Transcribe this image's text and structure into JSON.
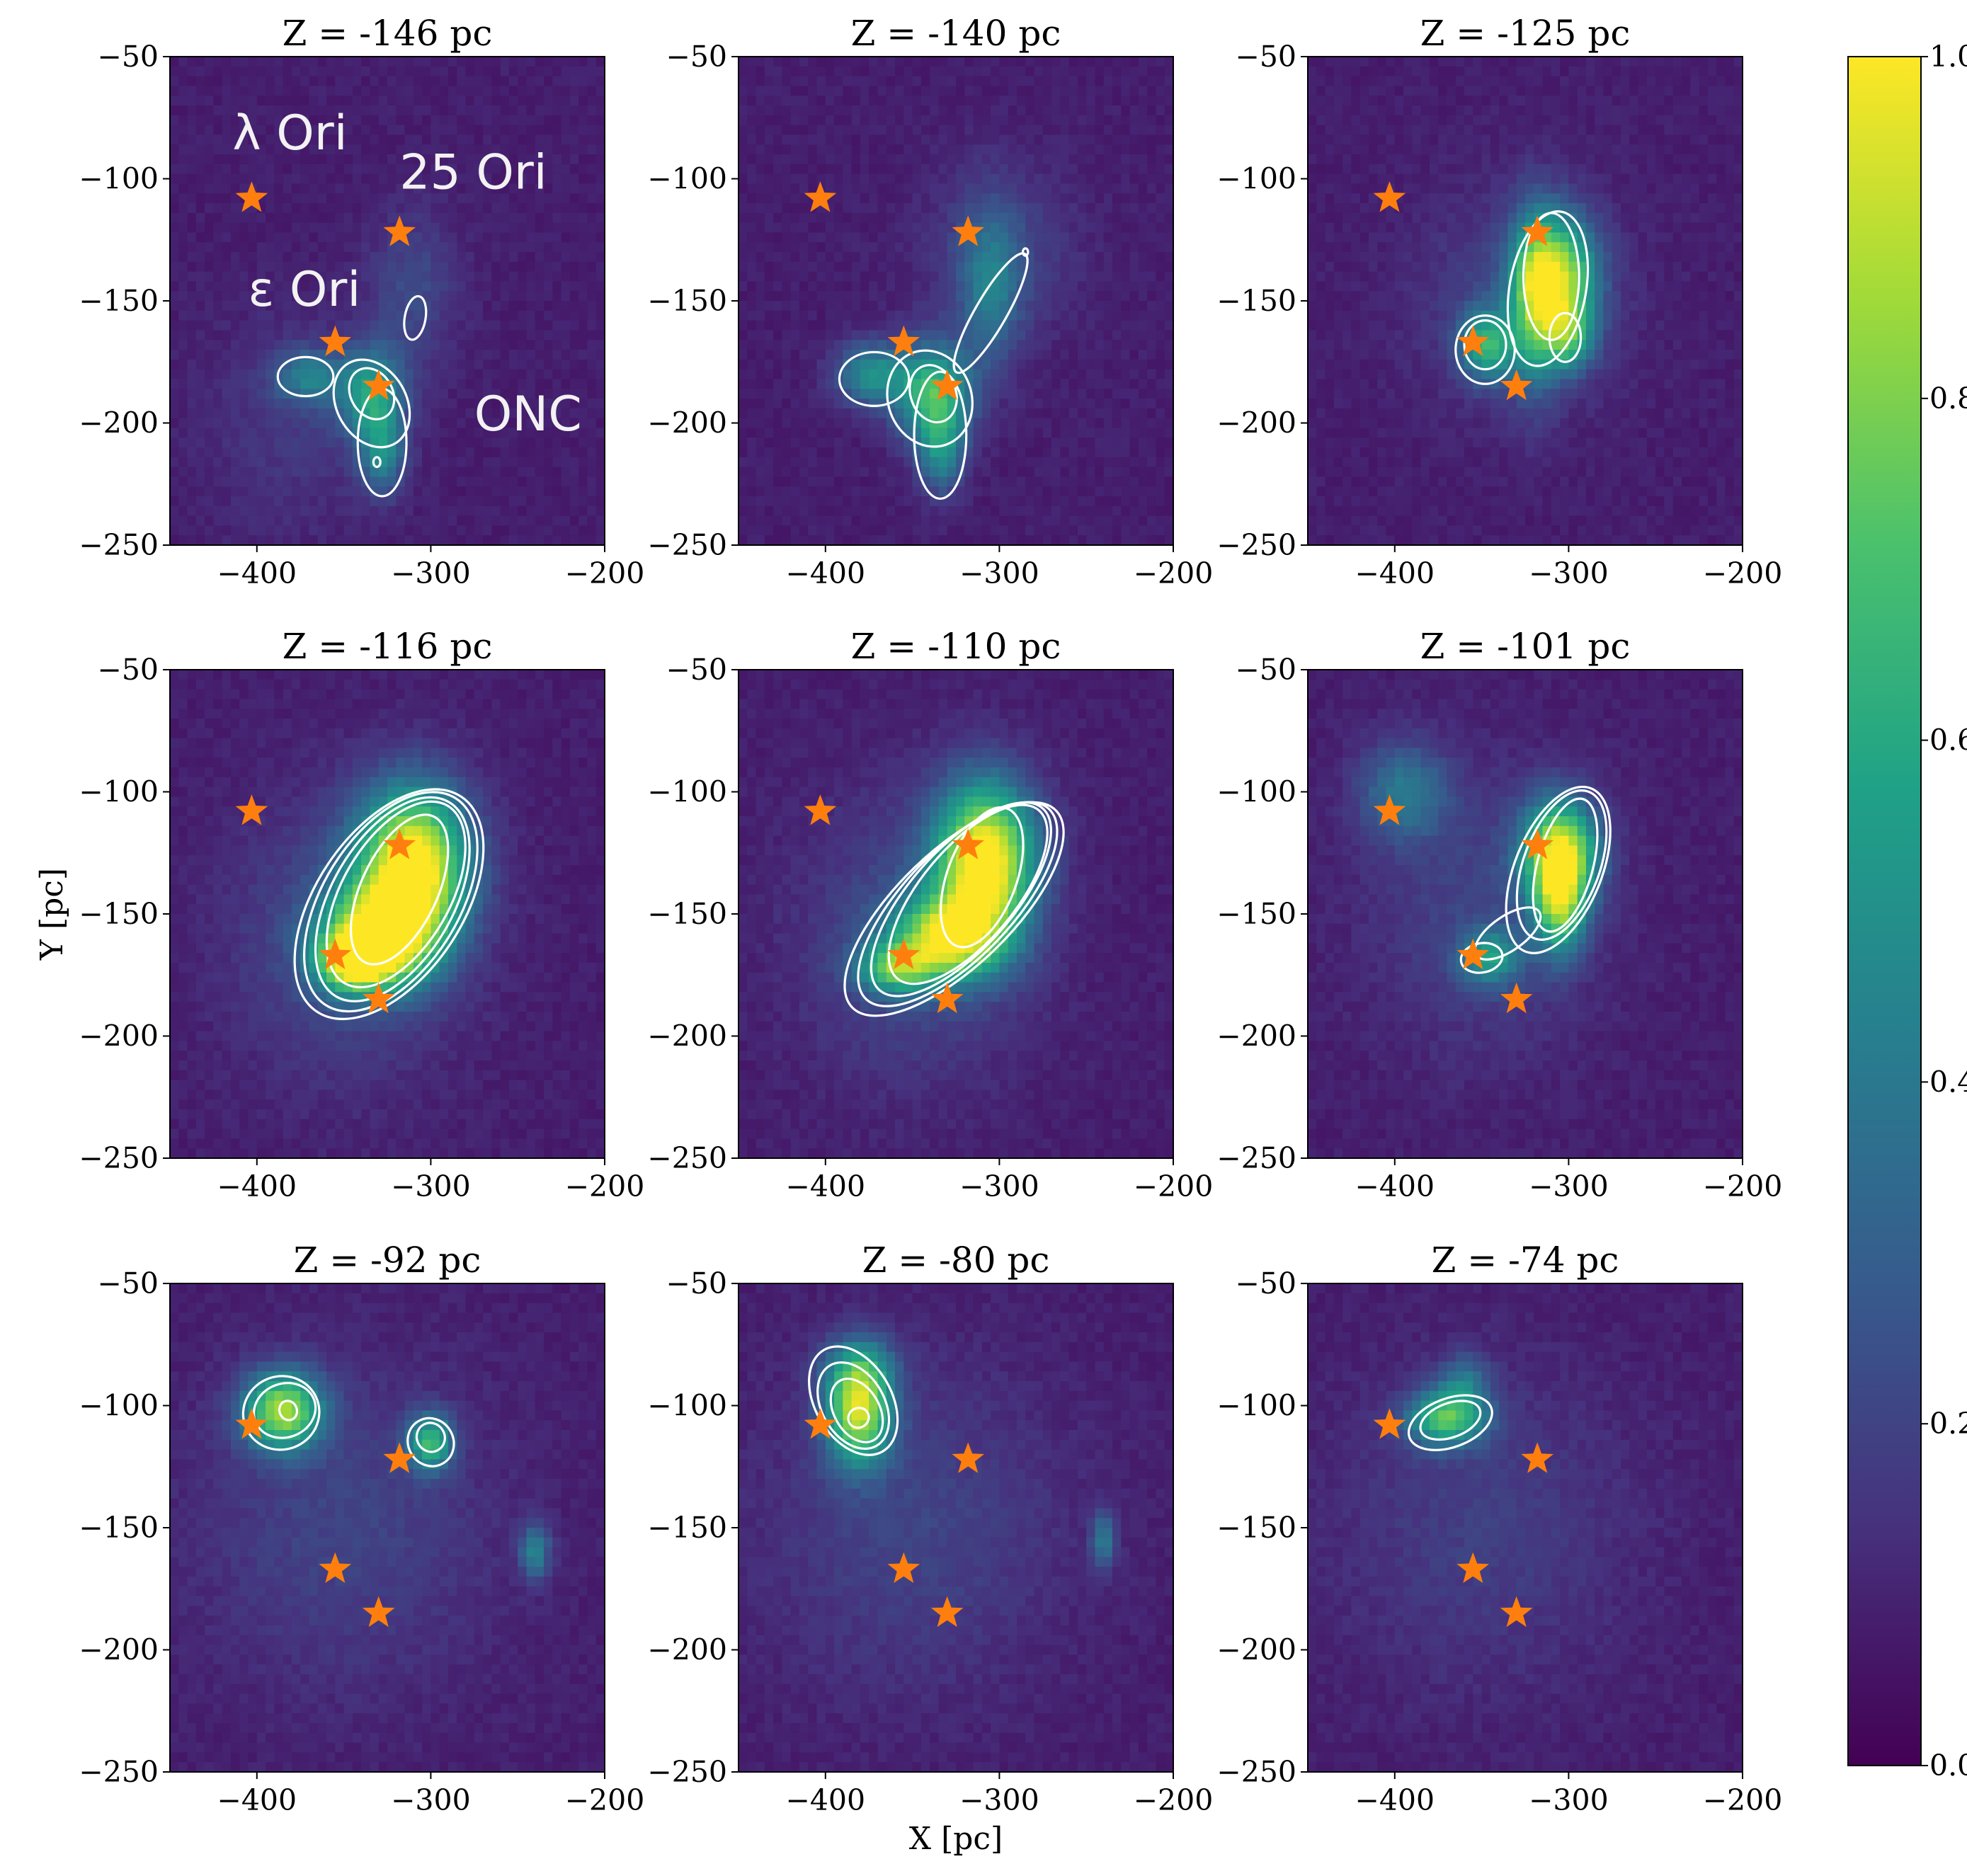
{
  "chart_data": {
    "type": "heatmap",
    "description_free": true,
    "xlabel": "X [pc]",
    "ylabel": "Y [pc]",
    "xlim": [
      -450,
      -200
    ],
    "ylim": [
      -250,
      -50
    ],
    "xticks": [
      -400,
      -300,
      -200
    ],
    "xtick_labels": [
      "−400",
      "−300",
      "−200"
    ],
    "yticks": [
      -50,
      -100,
      -150,
      -200,
      -250
    ],
    "ytick_labels": [
      "−50",
      "−100",
      "−150",
      "−200",
      "−250"
    ],
    "colorbar": {
      "range": [
        0.0,
        1.0
      ],
      "ticks": [
        0.0,
        0.2,
        0.4,
        0.6,
        0.8,
        1.0
      ],
      "tick_labels": [
        "0.0",
        "0.2",
        "0.4",
        "0.6",
        "0.8",
        "1.0"
      ],
      "colormap_stops": [
        "#440154",
        "#46327e",
        "#365c8d",
        "#277f8e",
        "#1fa187",
        "#4ac16d",
        "#a0da39",
        "#fde725"
      ]
    },
    "star_color": "#ff7f0e",
    "stars": [
      {
        "name": "λ Ori",
        "x": -403,
        "y": -108
      },
      {
        "name": "25 Ori",
        "x": -318,
        "y": -122
      },
      {
        "name": "ε Ori",
        "x": -355,
        "y": -167
      },
      {
        "name": "ONC",
        "x": -330,
        "y": -185
      }
    ],
    "panels": [
      {
        "title": "Z = -146 pc",
        "z": -146,
        "blobs": [
          {
            "x": -334,
            "y": -188,
            "sx": 13,
            "sy": 13,
            "a": 0.45
          },
          {
            "x": -328,
            "y": -212,
            "sx": 9,
            "sy": 12,
            "a": 0.35
          },
          {
            "x": -370,
            "y": -181,
            "sx": 14,
            "sy": 8,
            "a": 0.3
          },
          {
            "x": -310,
            "y": -145,
            "sx": 18,
            "sy": 22,
            "a": 0.14
          },
          {
            "x": -380,
            "y": -200,
            "sx": 35,
            "sy": 30,
            "a": 0.08
          }
        ],
        "contours": [
          {
            "x": -334,
            "y": -188,
            "rx": 12,
            "ry": 11,
            "rot": -30
          },
          {
            "x": -334,
            "y": -192,
            "rx": 20,
            "ry": 19,
            "rot": -30
          },
          {
            "x": -328,
            "y": -208,
            "rx": 14,
            "ry": 22,
            "rot": 0
          },
          {
            "x": -372,
            "y": -181,
            "rx": 16,
            "ry": 8,
            "rot": 0
          },
          {
            "x": -309,
            "y": -157,
            "rx": 6,
            "ry": 9,
            "rot": 10
          },
          {
            "x": -331,
            "y": -216,
            "rx": 2,
            "ry": 2,
            "rot": 0
          }
        ],
        "labels": [
          {
            "text": "λ Ori",
            "x": -414,
            "y": -88
          },
          {
            "text": "25 Ori",
            "x": -318,
            "y": -104
          },
          {
            "text": "ε Ori",
            "x": -405,
            "y": -152
          },
          {
            "text": "ONC",
            "x": -275,
            "y": -203
          }
        ]
      },
      {
        "title": "Z = -140 pc",
        "z": -140,
        "blobs": [
          {
            "x": -338,
            "y": -188,
            "sx": 15,
            "sy": 14,
            "a": 0.6
          },
          {
            "x": -333,
            "y": -212,
            "sx": 9,
            "sy": 12,
            "a": 0.35
          },
          {
            "x": -374,
            "y": -180,
            "sx": 14,
            "sy": 9,
            "a": 0.4
          },
          {
            "x": -305,
            "y": -145,
            "sx": 12,
            "sy": 22,
            "a": 0.28
          },
          {
            "x": -300,
            "y": -130,
            "sx": 30,
            "sy": 25,
            "a": 0.12
          }
        ],
        "contours": [
          {
            "x": -338,
            "y": -188,
            "rx": 13,
            "ry": 12,
            "rot": -20
          },
          {
            "x": -340,
            "y": -190,
            "rx": 24,
            "ry": 20,
            "rot": -20
          },
          {
            "x": -334,
            "y": -205,
            "rx": 15,
            "ry": 26,
            "rot": 0
          },
          {
            "x": -372,
            "y": -182,
            "rx": 20,
            "ry": 11,
            "rot": 0
          },
          {
            "x": -305,
            "y": -155,
            "rx": 9,
            "ry": 28,
            "rot": 30
          },
          {
            "x": -285,
            "y": -130,
            "rx": 1.5,
            "ry": 1.5,
            "rot": 0
          }
        ],
        "labels": []
      },
      {
        "title": "Z = -125 pc",
        "z": -125,
        "blobs": [
          {
            "x": -305,
            "y": -140,
            "sx": 15,
            "sy": 17,
            "a": 0.7
          },
          {
            "x": -320,
            "y": -150,
            "sx": 10,
            "sy": 25,
            "a": 0.45
          },
          {
            "x": -347,
            "y": -168,
            "sx": 11,
            "sy": 10,
            "a": 0.5
          },
          {
            "x": -300,
            "y": -165,
            "sx": 10,
            "sy": 10,
            "a": 0.4
          },
          {
            "x": -330,
            "y": -150,
            "sx": 40,
            "sy": 30,
            "a": 0.12
          }
        ],
        "contours": [
          {
            "x": -310,
            "y": -140,
            "rx": 16,
            "ry": 26,
            "rot": 0
          },
          {
            "x": -312,
            "y": -145,
            "rx": 22,
            "ry": 32,
            "rot": 10
          },
          {
            "x": -348,
            "y": -168,
            "rx": 12,
            "ry": 10,
            "rot": 0
          },
          {
            "x": -348,
            "y": -170,
            "rx": 17,
            "ry": 14,
            "rot": 0
          },
          {
            "x": -302,
            "y": -165,
            "rx": 9,
            "ry": 10,
            "rot": 0
          }
        ],
        "labels": []
      },
      {
        "title": "Z = -116 pc",
        "z": -116,
        "blobs": [
          {
            "x": -310,
            "y": -130,
            "sx": 22,
            "sy": 22,
            "a": 0.95
          },
          {
            "x": -330,
            "y": -160,
            "sx": 22,
            "sy": 14,
            "a": 0.8
          },
          {
            "x": -345,
            "y": -170,
            "sx": 14,
            "sy": 8,
            "a": 0.6
          },
          {
            "x": -350,
            "y": -160,
            "sx": 45,
            "sy": 40,
            "a": 0.15
          }
        ],
        "contours": [
          {
            "x": -318,
            "y": -140,
            "rx": 22,
            "ry": 33,
            "rot": 25
          },
          {
            "x": -320,
            "y": -142,
            "rx": 31,
            "ry": 42,
            "rot": 30
          },
          {
            "x": -322,
            "y": -144,
            "rx": 35,
            "ry": 46,
            "rot": 30
          },
          {
            "x": -323,
            "y": -145,
            "rx": 39,
            "ry": 50,
            "rot": 32
          },
          {
            "x": -324,
            "y": -146,
            "rx": 42,
            "ry": 53,
            "rot": 34
          }
        ],
        "labels": []
      },
      {
        "title": "Z = -110 pc",
        "z": -110,
        "blobs": [
          {
            "x": -308,
            "y": -128,
            "sx": 20,
            "sy": 22,
            "a": 0.95
          },
          {
            "x": -330,
            "y": -160,
            "sx": 22,
            "sy": 12,
            "a": 0.7
          },
          {
            "x": -360,
            "y": -172,
            "sx": 15,
            "sy": 7,
            "a": 0.5
          },
          {
            "x": -350,
            "y": -160,
            "sx": 45,
            "sy": 40,
            "a": 0.15
          }
        ],
        "contours": [
          {
            "x": -310,
            "y": -135,
            "rx": 20,
            "ry": 30,
            "rot": 20
          },
          {
            "x": -318,
            "y": -142,
            "rx": 27,
            "ry": 45,
            "rot": 40
          },
          {
            "x": -322,
            "y": -144,
            "rx": 29,
            "ry": 50,
            "rot": 42
          },
          {
            "x": -324,
            "y": -146,
            "rx": 31,
            "ry": 54,
            "rot": 44
          },
          {
            "x": -326,
            "y": -148,
            "rx": 33,
            "ry": 58,
            "rot": 46
          }
        ],
        "labels": []
      },
      {
        "title": "Z = -101 pc",
        "z": -101,
        "blobs": [
          {
            "x": -305,
            "y": -125,
            "sx": 15,
            "sy": 15,
            "a": 0.85
          },
          {
            "x": -305,
            "y": -148,
            "sx": 10,
            "sy": 14,
            "a": 0.55
          },
          {
            "x": -345,
            "y": -168,
            "sx": 12,
            "sy": 8,
            "a": 0.4
          },
          {
            "x": -395,
            "y": -100,
            "sx": 18,
            "sy": 14,
            "a": 0.3
          },
          {
            "x": -350,
            "y": -150,
            "sx": 45,
            "sy": 40,
            "a": 0.12
          }
        ],
        "contours": [
          {
            "x": -302,
            "y": -130,
            "rx": 16,
            "ry": 28,
            "rot": 15
          },
          {
            "x": -304,
            "y": -130,
            "rx": 22,
            "ry": 32,
            "rot": 20
          },
          {
            "x": -306,
            "y": -132,
            "rx": 25,
            "ry": 36,
            "rot": 22
          },
          {
            "x": -350,
            "y": -168,
            "rx": 12,
            "ry": 6,
            "rot": -10
          },
          {
            "x": -335,
            "y": -158,
            "rx": 22,
            "ry": 7,
            "rot": -35
          }
        ],
        "labels": []
      },
      {
        "title": "Z = -92 pc",
        "z": -92,
        "blobs": [
          {
            "x": -385,
            "y": -102,
            "sx": 16,
            "sy": 11,
            "a": 0.75
          },
          {
            "x": -300,
            "y": -115,
            "sx": 9,
            "sy": 8,
            "a": 0.55
          },
          {
            "x": -240,
            "y": -160,
            "sx": 6,
            "sy": 8,
            "a": 0.35
          },
          {
            "x": -350,
            "y": -150,
            "sx": 60,
            "sy": 45,
            "a": 0.12
          }
        ],
        "contours": [
          {
            "x": -382,
            "y": -102,
            "rx": 5,
            "ry": 4,
            "rot": -20
          },
          {
            "x": -384,
            "y": -102,
            "rx": 18,
            "ry": 11,
            "rot": -20
          },
          {
            "x": -386,
            "y": -103,
            "rx": 22,
            "ry": 15,
            "rot": -20
          },
          {
            "x": -300,
            "y": -113,
            "rx": 8,
            "ry": 6,
            "rot": -30
          },
          {
            "x": -300,
            "y": -115,
            "rx": 13,
            "ry": 10,
            "rot": -30
          }
        ],
        "labels": []
      },
      {
        "title": "Z = -80 pc",
        "z": -80,
        "blobs": [
          {
            "x": -381,
            "y": -103,
            "sx": 13,
            "sy": 15,
            "a": 0.75
          },
          {
            "x": -380,
            "y": -85,
            "sx": 14,
            "sy": 10,
            "a": 0.3
          },
          {
            "x": -240,
            "y": -155,
            "sx": 5,
            "sy": 8,
            "a": 0.3
          },
          {
            "x": -350,
            "y": -150,
            "sx": 60,
            "sy": 45,
            "a": 0.12
          }
        ],
        "contours": [
          {
            "x": -381,
            "y": -105,
            "rx": 6,
            "ry": 4,
            "rot": -30
          },
          {
            "x": -382,
            "y": -102,
            "rx": 13,
            "ry": 14,
            "rot": -30
          },
          {
            "x": -384,
            "y": -100,
            "rx": 18,
            "ry": 19,
            "rot": -30
          },
          {
            "x": -384,
            "y": -98,
            "rx": 22,
            "ry": 24,
            "rot": -30
          }
        ],
        "labels": []
      },
      {
        "title": "Z = -74 pc",
        "z": -74,
        "blobs": [
          {
            "x": -370,
            "y": -105,
            "sx": 16,
            "sy": 8,
            "a": 0.6
          },
          {
            "x": -360,
            "y": -90,
            "sx": 10,
            "sy": 8,
            "a": 0.25
          },
          {
            "x": -350,
            "y": -150,
            "sx": 60,
            "sy": 45,
            "a": 0.1
          }
        ],
        "contours": [
          {
            "x": -368,
            "y": -106,
            "rx": 18,
            "ry": 7,
            "rot": -20
          },
          {
            "x": -368,
            "y": -107,
            "rx": 25,
            "ry": 10,
            "rot": -20
          }
        ],
        "labels": []
      }
    ]
  }
}
